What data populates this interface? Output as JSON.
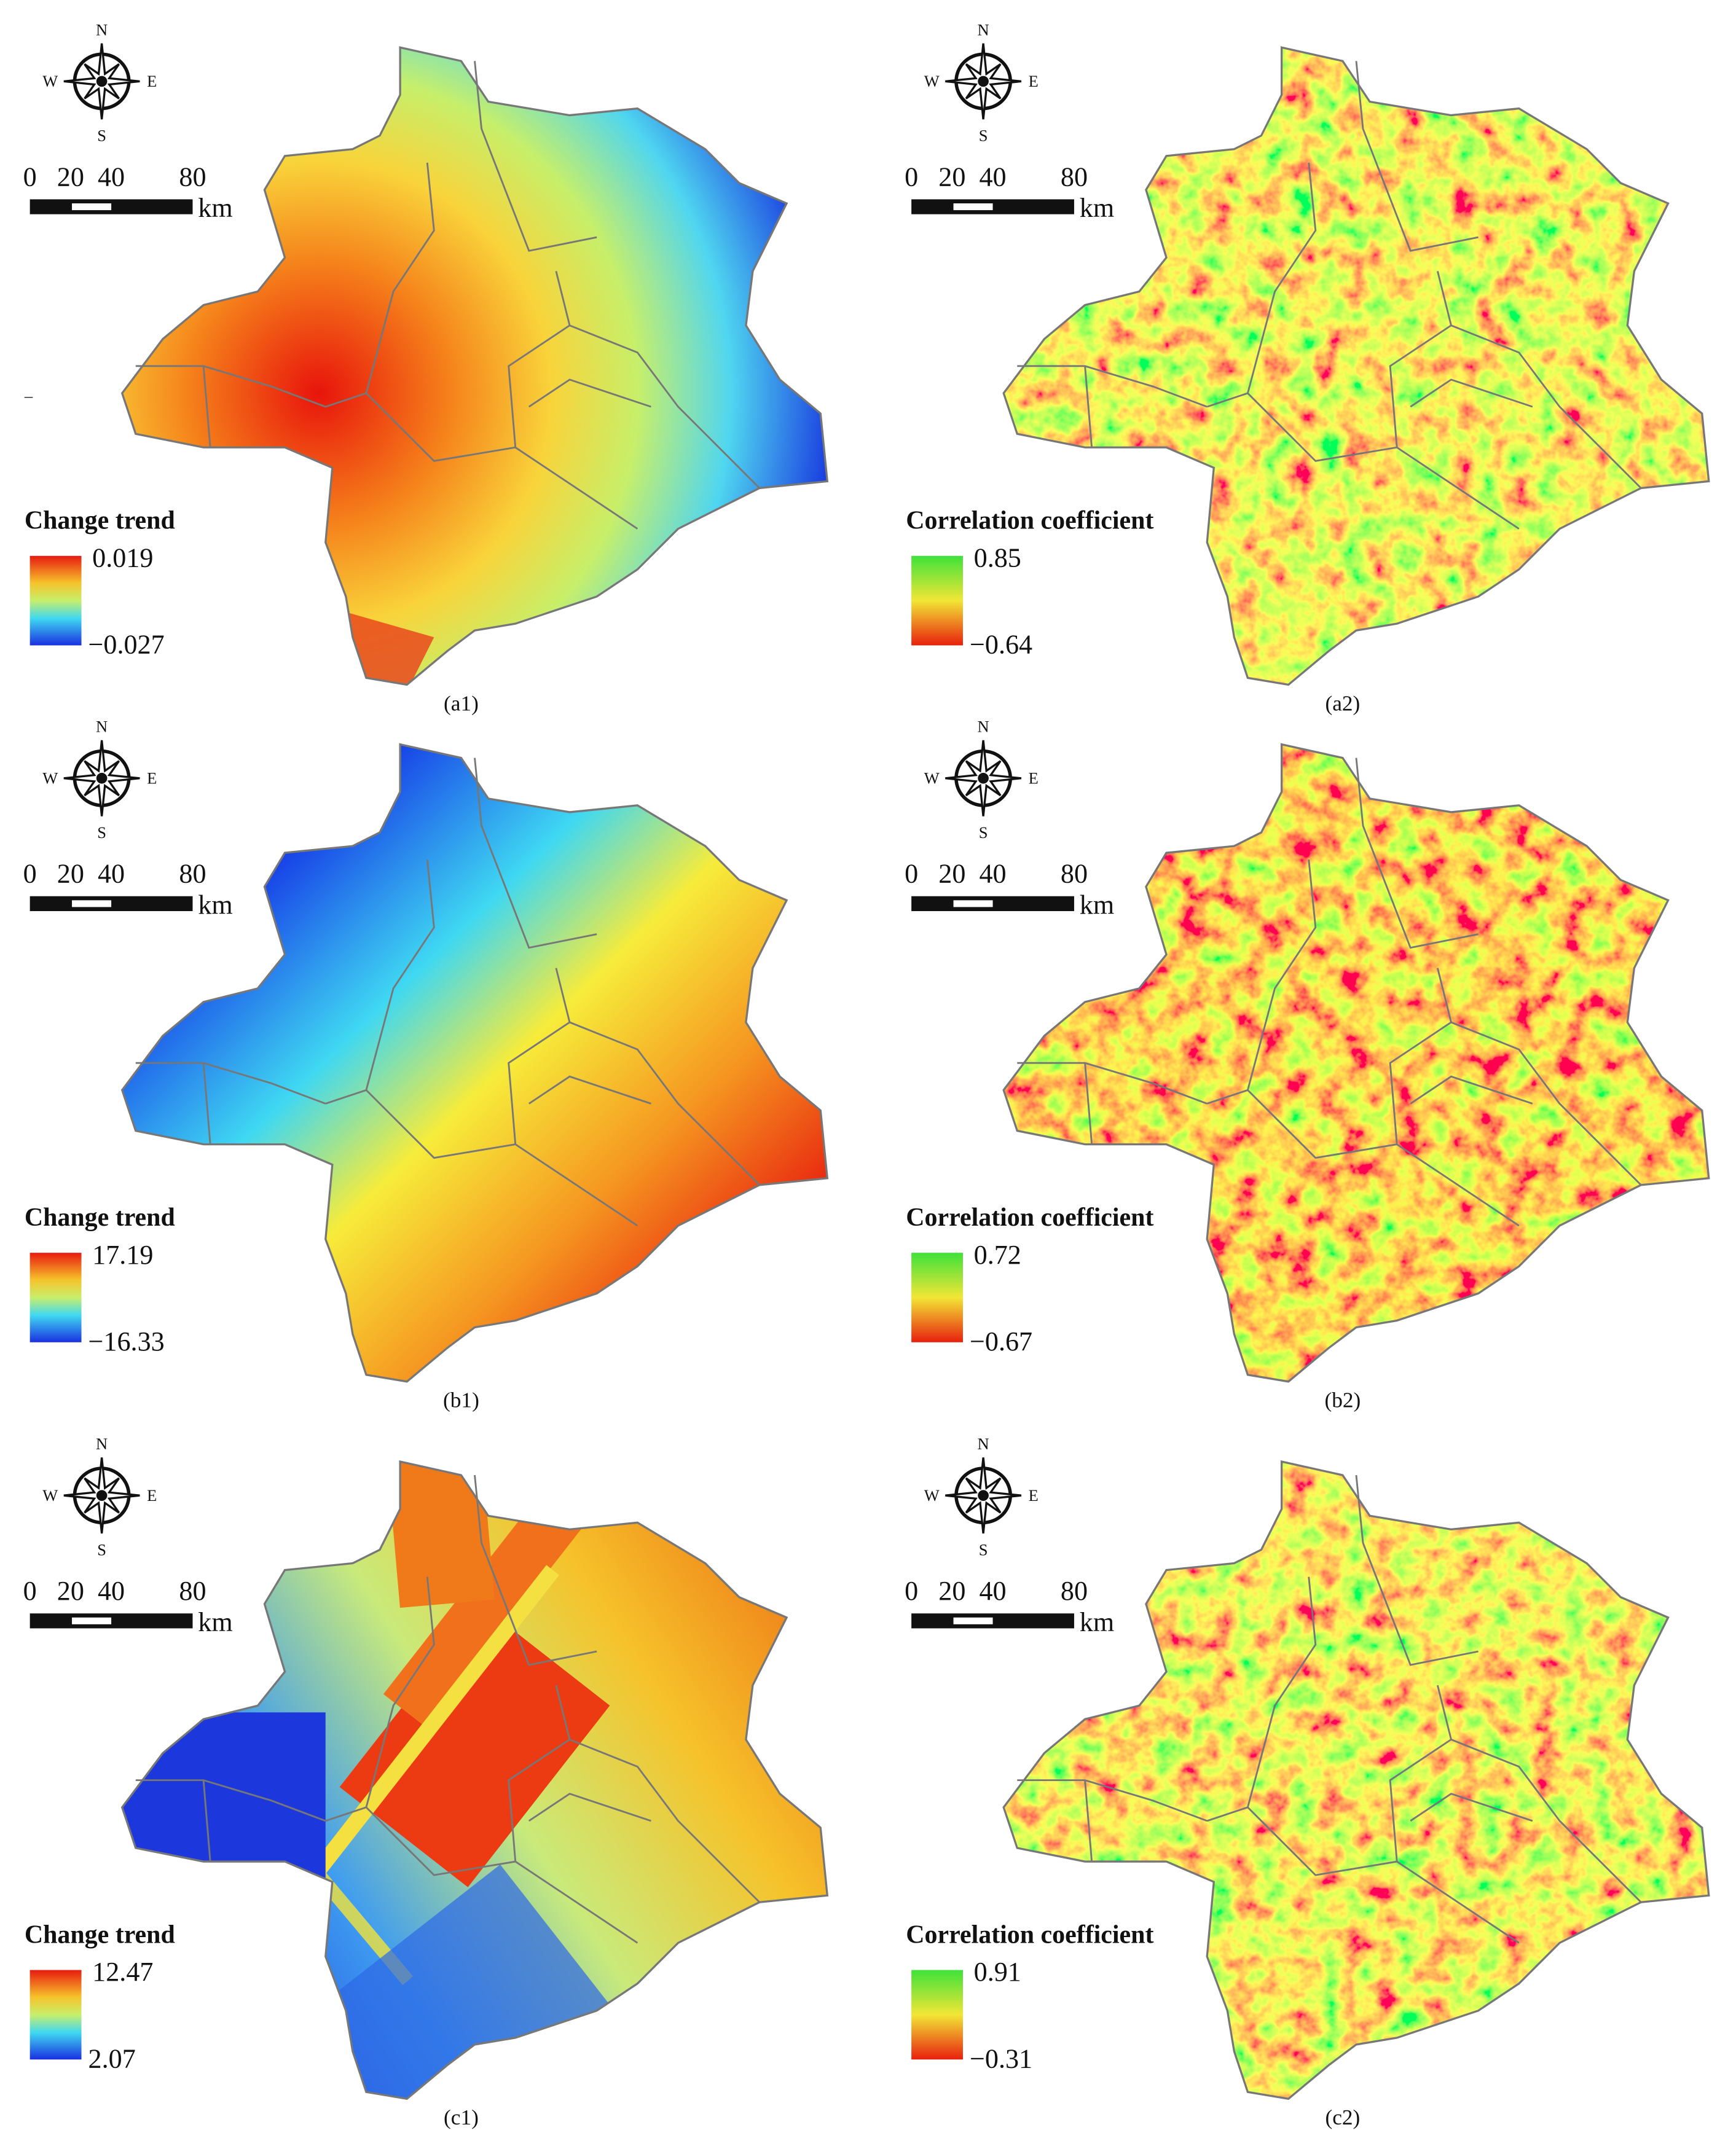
{
  "panels": [
    {
      "label": "(a1)",
      "legend_title": "Change trend",
      "legend_max": "0.019",
      "legend_min": "−0.027"
    },
    {
      "label": "(a2)",
      "legend_title": "Correlation coefficient",
      "legend_max": "0.85",
      "legend_min": "−0.64"
    },
    {
      "label": "(b1)",
      "legend_title": "Change trend",
      "legend_max": "17.19",
      "legend_min": "−16.33"
    },
    {
      "label": "(b2)",
      "legend_title": "Correlation coefficient",
      "legend_max": "0.72",
      "legend_min": "−0.67"
    },
    {
      "label": "(c1)",
      "legend_title": "Change trend",
      "legend_max": "12.47",
      "legend_min": "2.07"
    },
    {
      "label": "(c2)",
      "legend_title": "Correlation coefficient",
      "legend_max": "0.91",
      "legend_min": "−0.31"
    }
  ],
  "compass": {
    "n": "N",
    "s": "S",
    "w": "W",
    "e": "E"
  },
  "scale": {
    "ticks": [
      "0",
      "20",
      "40",
      "80"
    ],
    "unit": "km"
  },
  "stray_mark": "–"
}
